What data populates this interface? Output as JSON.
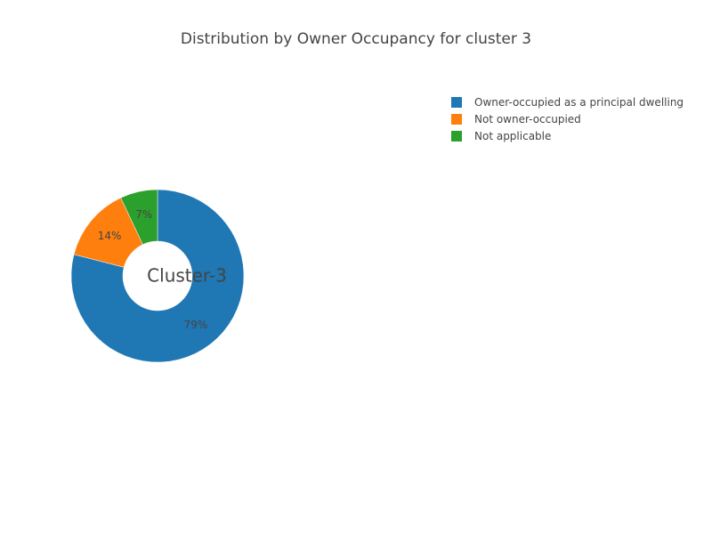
{
  "chart_data": {
    "type": "pie",
    "title": "Distribution by Owner Occupancy for cluster 3",
    "center_label": "Cluster-3",
    "hole": true,
    "legend_position": "top-right",
    "slices": [
      {
        "label": "Owner-occupied as a principal dwelling",
        "value": 79,
        "display": "79%",
        "color": "#1f77b4"
      },
      {
        "label": "Not owner-occupied",
        "value": 14,
        "display": "14%",
        "color": "#ff7f0e"
      },
      {
        "label": "Not applicable",
        "value": 7,
        "display": "7%",
        "color": "#2ca02c"
      }
    ]
  }
}
